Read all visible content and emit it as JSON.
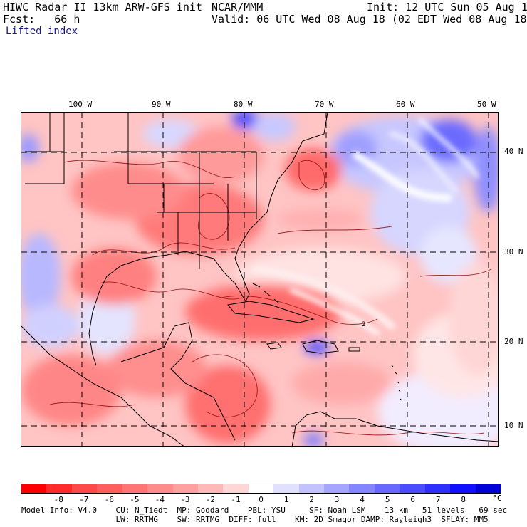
{
  "header": {
    "title": "HIWC Radar II 13km ARW-GFS init",
    "org": "NCAR/MMM",
    "init": "Init: 12 UTC Sun 05 Aug 18",
    "fcst": "Fcst:   66 h",
    "valid": "Valid: 06 UTC Wed 08 Aug 18 (02 EDT Wed 08 Aug 18)",
    "field": "Lifted index"
  },
  "map": {
    "lon_labels": [
      "100 W",
      "90 W",
      "80 W",
      "70 W",
      "60 W",
      "50 W"
    ],
    "lat_labels": [
      "40 N",
      "30 N",
      "20 N",
      "10 N"
    ],
    "contour_label": "2"
  },
  "colorbar": {
    "ticks": [
      "-8",
      "-7",
      "-6",
      "-5",
      "-4",
      "-3",
      "-2",
      "-1",
      "0",
      "1",
      "2",
      "3",
      "4",
      "5",
      "6",
      "7",
      "8"
    ],
    "unit": "°C",
    "colors": [
      "#ff0000",
      "#ff2b2b",
      "#ff4848",
      "#ff5e5e",
      "#ff7474",
      "#ff8a8a",
      "#ffa0a0",
      "#ffb8b8",
      "#ffd6d6",
      "#ffffff",
      "#e0e0ff",
      "#c2c2ff",
      "#a5a5ff",
      "#8585ff",
      "#6868ff",
      "#4b4bff",
      "#2e2eff",
      "#1010ff",
      "#0000d8"
    ]
  },
  "footer": {
    "line1": "Model Info: V4.0    CU: N_Tiedt  MP: Goddard    PBL: YSU     SF: Noah LSM    13 km   51 levels   69 sec",
    "line2": "                    LW: RRTMG    SW: RRTMG  DIFF: full    KM: 2D Smagor DAMP: Rayleigh3  SFLAY: MM5"
  }
}
